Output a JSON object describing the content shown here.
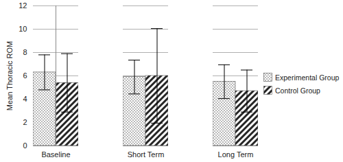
{
  "chart_data": {
    "type": "bar",
    "categories": [
      "Baseline",
      "Short Term",
      "Long Term"
    ],
    "series": [
      {
        "name": "Experimental Group",
        "color": "#9a9a9a",
        "values": [
          6.3,
          5.9,
          5.5
        ],
        "errors": [
          1.5,
          1.45,
          1.45
        ]
      },
      {
        "name": "Control Group",
        "color": "#262626",
        "values": [
          5.4,
          6.0,
          4.7
        ],
        "errors": [
          2.5,
          4.05,
          1.8
        ]
      }
    ],
    "y_label": "Mean Thoracic ROM",
    "ylim": [
      0,
      12
    ],
    "yticks": [
      0,
      2,
      4,
      6,
      8,
      10,
      12
    ],
    "grid": true,
    "legend": "right"
  }
}
